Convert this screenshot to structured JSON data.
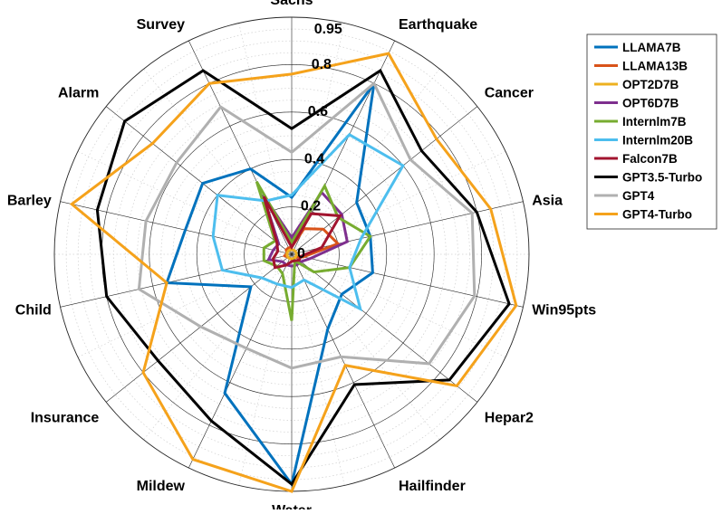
{
  "chart_data": {
    "type": "radar",
    "title": "",
    "categories": [
      "Sachs",
      "Earthquake",
      "Cancer",
      "Asia",
      "Win95pts",
      "Hepar2",
      "Hailfinder",
      "Water",
      "Mildew",
      "Insurance",
      "Child",
      "Barley",
      "Alarm",
      "Survey"
    ],
    "radial_ticks": [
      0,
      0.2,
      0.4,
      0.6,
      0.8,
      0.95
    ],
    "radial_tick_labels": [
      "0",
      "0.2",
      "0.4",
      "0.6",
      "0.8",
      "0.95"
    ],
    "rlim": [
      0,
      1.0
    ],
    "grid": true,
    "legend_position": "top-right",
    "series": [
      {
        "name": "LLAMA7B",
        "color": "#0072BD",
        "values": [
          0.24,
          0.8,
          0.35,
          0.34,
          0.35,
          0.27,
          0.35,
          0.97,
          0.65,
          0.22,
          0.54,
          0.46,
          0.48,
          0.4
        ]
      },
      {
        "name": "LLAMA13B",
        "color": "#D95319",
        "values": [
          0.03,
          0.12,
          0.17,
          0.2,
          0.05,
          0.02,
          0.02,
          0.02,
          0.02,
          0.02,
          0.03,
          0.02,
          0.03,
          0.03
        ]
      },
      {
        "name": "OPT2D7B",
        "color": "#EDB120",
        "values": [
          0.02,
          0.02,
          0.02,
          0.02,
          0.02,
          0.02,
          0.02,
          0.02,
          0.02,
          0.02,
          0.02,
          0.02,
          0.02,
          0.02
        ]
      },
      {
        "name": "OPT6D7B",
        "color": "#7E2F8E",
        "values": [
          0.07,
          0.29,
          0.27,
          0.24,
          0.08,
          0.05,
          0.05,
          0.05,
          0.05,
          0.05,
          0.1,
          0.08,
          0.07,
          0.28
        ]
      },
      {
        "name": "Internlm7B",
        "color": "#77AC30",
        "values": [
          0.05,
          0.32,
          0.25,
          0.34,
          0.25,
          0.12,
          0.03,
          0.28,
          0.09,
          0.08,
          0.12,
          0.12,
          0.09,
          0.34
        ]
      },
      {
        "name": "Internlm20B",
        "color": "#4DBEEE",
        "values": [
          0.25,
          0.56,
          0.6,
          0.3,
          0.25,
          0.37,
          0.12,
          0.14,
          0.14,
          0.16,
          0.3,
          0.34,
          0.4,
          0.25
        ]
      },
      {
        "name": "Falcon7B",
        "color": "#A2142F",
        "values": [
          0.03,
          0.19,
          0.26,
          0.13,
          0.04,
          0.04,
          0.03,
          0.03,
          0.05,
          0.09,
          0.08,
          0.06,
          0.08,
          0.27
        ]
      },
      {
        "name": "GPT3.5-Turbo",
        "color": "#000000",
        "values": [
          0.53,
          0.86,
          0.7,
          0.8,
          0.94,
          0.85,
          0.61,
          0.97,
          0.78,
          0.72,
          0.8,
          0.84,
          0.9,
          0.86
        ]
      },
      {
        "name": "GPT4",
        "color": "#B0B0B0",
        "values": [
          0.43,
          0.8,
          0.64,
          0.78,
          0.79,
          0.74,
          0.48,
          0.48,
          0.44,
          0.49,
          0.66,
          0.63,
          0.62,
          0.69
        ]
      },
      {
        "name": "GPT4-Turbo",
        "color": "#F5A21B",
        "values": [
          0.76,
          0.94,
          0.78,
          0.86,
          0.97,
          0.89,
          0.52,
          1.0,
          0.96,
          0.8,
          0.54,
          0.95,
          0.75,
          0.8
        ]
      }
    ]
  }
}
